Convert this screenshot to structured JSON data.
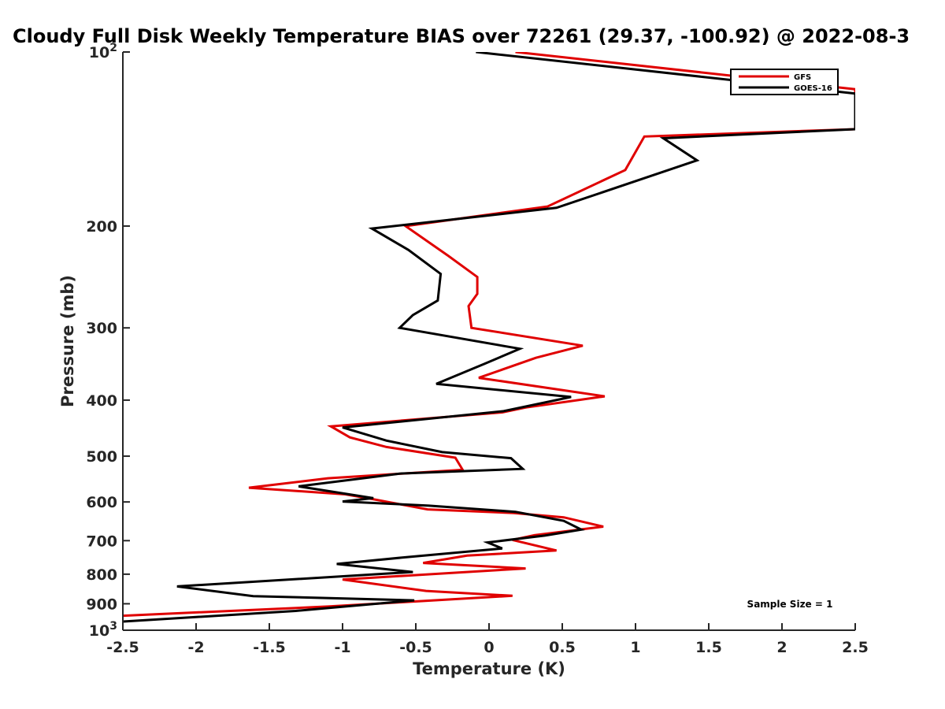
{
  "chart_data": {
    "type": "line",
    "title": "Cloudy Full Disk Weekly Temperature BIAS over 72261 (29.37, -100.92) @ 2022-08-3",
    "xlabel": "Temperature (K)",
    "ylabel": "Pressure (mb)",
    "xlim": [
      -2.5,
      2.5
    ],
    "ylim": [
      100,
      1000
    ],
    "yscale": "log",
    "yreversed": true,
    "grid": false,
    "legend_position": "top-right",
    "x_ticks": [
      -2.5,
      -2,
      -1.5,
      -1,
      -0.5,
      0,
      0.5,
      1,
      1.5,
      2,
      2.5
    ],
    "x_tick_labels": [
      "-2.5",
      "-2",
      "-1.5",
      "-1",
      "-0.5",
      "0",
      "0.5",
      "1",
      "1.5",
      "2",
      "2.5"
    ],
    "y_ticks": [
      100,
      200,
      300,
      400,
      500,
      600,
      700,
      800,
      900,
      1000
    ],
    "y_tick_labels": [
      {
        "base": "10",
        "exp": "2"
      },
      {
        "base": "200",
        "exp": ""
      },
      {
        "base": "300",
        "exp": ""
      },
      {
        "base": "400",
        "exp": ""
      },
      {
        "base": "500",
        "exp": ""
      },
      {
        "base": "600",
        "exp": ""
      },
      {
        "base": "700",
        "exp": ""
      },
      {
        "base": "800",
        "exp": ""
      },
      {
        "base": "900",
        "exp": ""
      },
      {
        "base": "10",
        "exp": "3"
      }
    ],
    "annotation": "Sample Size = 1",
    "series": [
      {
        "name": "GFS",
        "color": "#e00000",
        "points": [
          [
            0.18,
            100
          ],
          [
            2.5,
            116
          ],
          [
            2.5,
            136
          ],
          [
            1.06,
            140
          ],
          [
            0.93,
            160
          ],
          [
            0.4,
            185
          ],
          [
            -0.57,
            200
          ],
          [
            -0.28,
            225
          ],
          [
            -0.08,
            245
          ],
          [
            -0.08,
            262
          ],
          [
            -0.14,
            275
          ],
          [
            -0.12,
            300
          ],
          [
            0.64,
            322
          ],
          [
            0.32,
            338
          ],
          [
            -0.07,
            366
          ],
          [
            0.79,
            394
          ],
          [
            0.25,
            412
          ],
          [
            0.09,
            420
          ],
          [
            -1.08,
            444
          ],
          [
            -0.95,
            464
          ],
          [
            -0.7,
            482
          ],
          [
            -0.23,
            503
          ],
          [
            -0.18,
            528
          ],
          [
            -1.1,
            546
          ],
          [
            -1.64,
            567
          ],
          [
            -0.98,
            582
          ],
          [
            -0.8,
            593
          ],
          [
            -0.42,
            618
          ],
          [
            0.17,
            627
          ],
          [
            0.51,
            638
          ],
          [
            0.78,
            662
          ],
          [
            0.31,
            685
          ],
          [
            0.16,
            698
          ],
          [
            0.46,
            728
          ],
          [
            -0.15,
            743
          ],
          [
            -0.45,
            765
          ],
          [
            0.25,
            782
          ],
          [
            -1.0,
            817
          ],
          [
            -0.43,
            855
          ],
          [
            0.16,
            872
          ],
          [
            -1.1,
            910
          ],
          [
            -2.5,
            944
          ]
        ]
      },
      {
        "name": "GOES-16",
        "color": "#000000",
        "points": [
          [
            -0.09,
            100
          ],
          [
            2.5,
            118
          ],
          [
            2.5,
            136
          ],
          [
            1.19,
            141
          ],
          [
            1.42,
            154
          ],
          [
            0.46,
            186
          ],
          [
            -0.8,
            202
          ],
          [
            -0.55,
            220
          ],
          [
            -0.33,
            242
          ],
          [
            -0.35,
            269
          ],
          [
            -0.52,
            285
          ],
          [
            -0.61,
            300
          ],
          [
            0.21,
            326
          ],
          [
            -0.03,
            346
          ],
          [
            -0.36,
            375
          ],
          [
            0.56,
            395
          ],
          [
            0.1,
            418
          ],
          [
            -1.0,
            446
          ],
          [
            -0.7,
            470
          ],
          [
            -0.32,
            492
          ],
          [
            0.15,
            504
          ],
          [
            0.23,
            526
          ],
          [
            -0.61,
            536
          ],
          [
            -1.3,
            564
          ],
          [
            -0.79,
            591
          ],
          [
            -1.0,
            599
          ],
          [
            -0.41,
            609
          ],
          [
            0.18,
            624
          ],
          [
            0.51,
            647
          ],
          [
            0.63,
            670
          ],
          [
            0.38,
            686
          ],
          [
            -0.01,
            705
          ],
          [
            0.09,
            722
          ],
          [
            -0.6,
            749
          ],
          [
            -1.04,
            768
          ],
          [
            -0.52,
            793
          ],
          [
            -2.13,
            840
          ],
          [
            -1.61,
            873
          ],
          [
            -0.51,
            888
          ],
          [
            -1.32,
            926
          ],
          [
            -2.5,
            966
          ]
        ]
      }
    ]
  }
}
